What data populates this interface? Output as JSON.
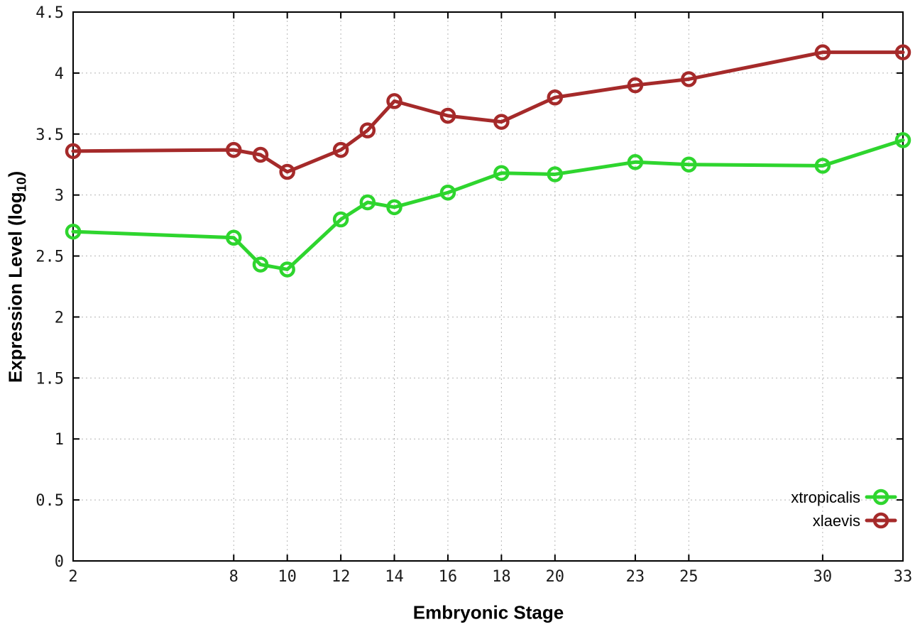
{
  "chart_data": {
    "type": "line",
    "title": "",
    "xlabel": "Embryonic Stage",
    "ylabel": "Expression Level (log10)",
    "ylabel_parts": {
      "main": "Expression Level (log",
      "sub": "10",
      "close": ")"
    },
    "xlim": [
      2,
      33
    ],
    "ylim": [
      0,
      4.5
    ],
    "x_ticks": [
      2,
      8,
      10,
      12,
      14,
      16,
      18,
      20,
      23,
      25,
      30,
      33
    ],
    "y_ticks": [
      0,
      0.5,
      1,
      1.5,
      2,
      2.5,
      3,
      3.5,
      4,
      4.5
    ],
    "grid": true,
    "legend_position": "bottom-right",
    "x": [
      2,
      8,
      9,
      10,
      12,
      13,
      14,
      16,
      18,
      20,
      23,
      25,
      30,
      33
    ],
    "series": [
      {
        "name": "xtropicalis",
        "color": "#2ed52e",
        "marker": "open-circle",
        "values": [
          2.7,
          2.65,
          2.43,
          2.39,
          2.8,
          2.94,
          2.9,
          3.02,
          3.18,
          3.17,
          3.27,
          3.25,
          3.24,
          3.45
        ]
      },
      {
        "name": "xlaevis",
        "color": "#a52a2a",
        "marker": "open-circle",
        "values": [
          3.36,
          3.37,
          3.33,
          3.19,
          3.37,
          3.53,
          3.77,
          3.65,
          3.6,
          3.8,
          3.9,
          3.95,
          4.17,
          4.17
        ]
      }
    ]
  },
  "colors": {
    "background": "#ffffff",
    "axis": "#000000",
    "grid": "#b5b5b5",
    "tick_text": "#1a1a1a"
  }
}
